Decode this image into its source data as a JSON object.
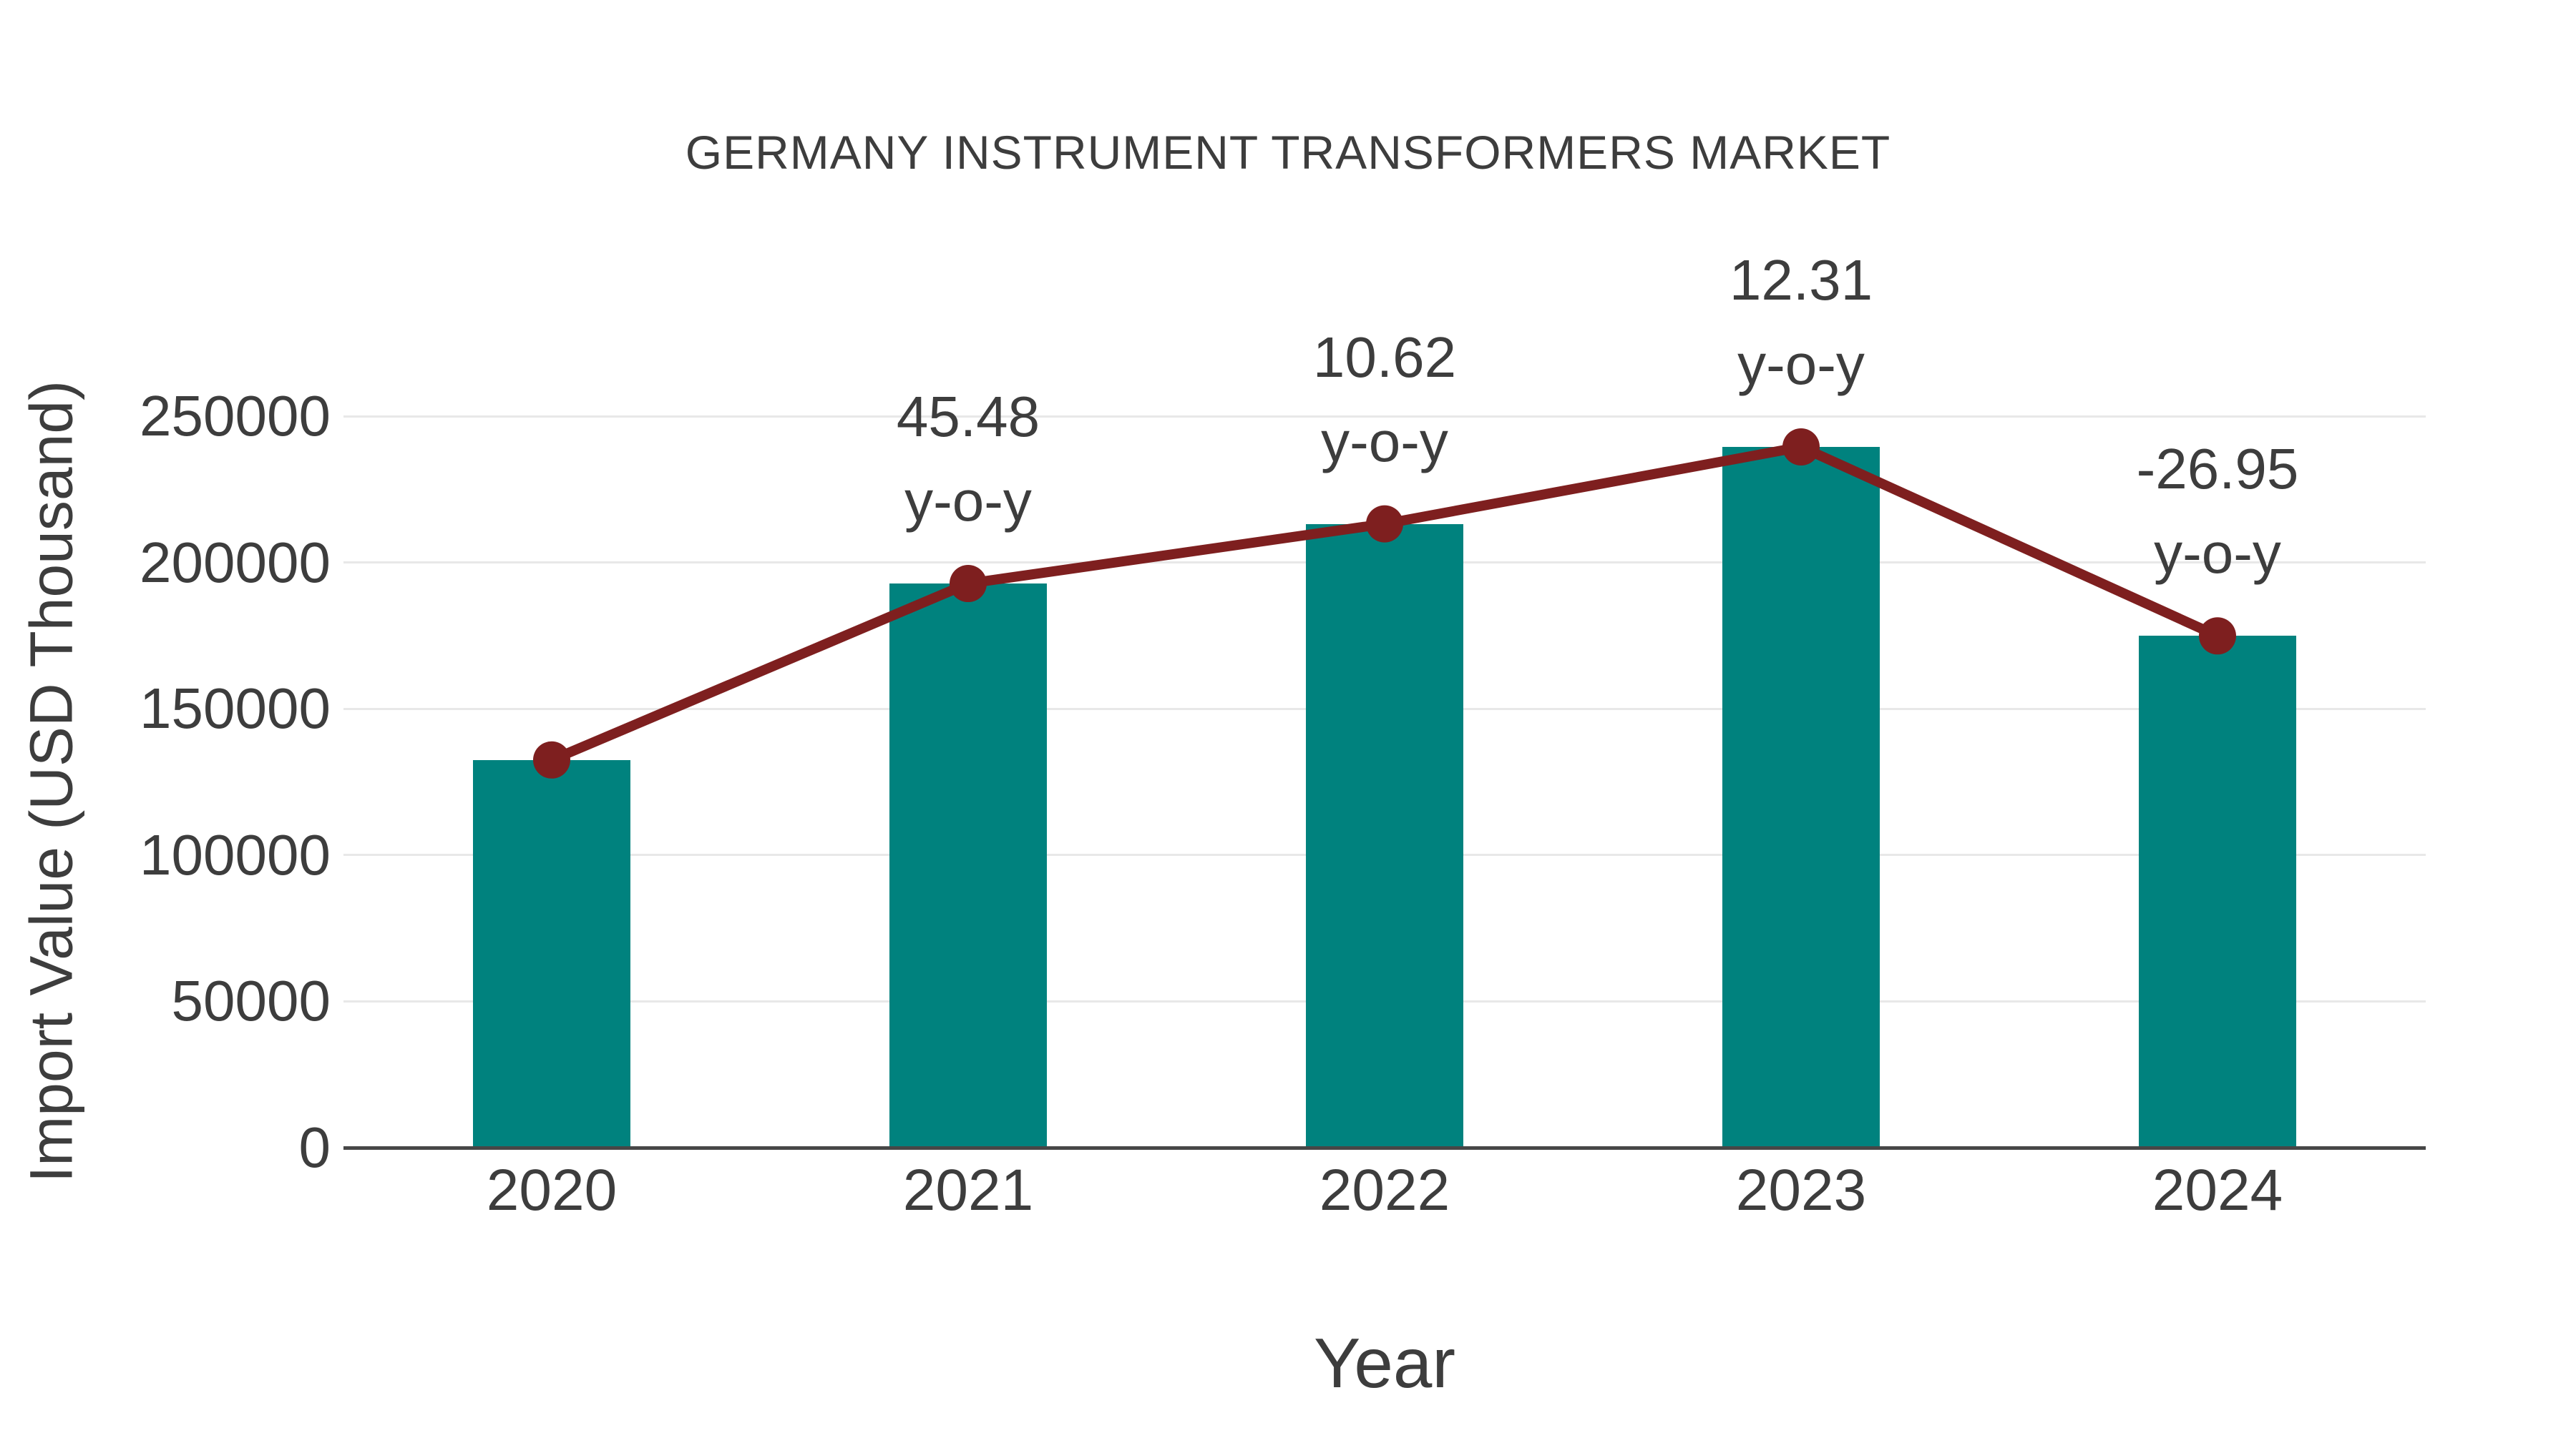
{
  "chart_data": {
    "type": "bar",
    "overlay": "line",
    "title": "GERMANY INSTRUMENT TRANSFORMERS MARKET",
    "xlabel": "Year",
    "ylabel": "Import Value (USD Thousand)",
    "categories": [
      "2020",
      "2021",
      "2022",
      "2023",
      "2024"
    ],
    "series": [
      {
        "name": "Import Value",
        "type": "bar",
        "values": [
          132500,
          192800,
          213200,
          239500,
          174900
        ]
      },
      {
        "name": "y-o-y trend",
        "type": "line",
        "values": [
          132500,
          192800,
          213200,
          239500,
          174900
        ]
      }
    ],
    "yoy_labels": [
      null,
      "45.48",
      "10.62",
      "12.31",
      "-26.95"
    ],
    "yoy_suffix": "y-o-y",
    "yticks": [
      0,
      50000,
      100000,
      150000,
      200000,
      250000
    ],
    "ylim": [
      0,
      280000
    ],
    "grid": "horizontal",
    "legend_position": "none",
    "colors": {
      "bar": "#00827e",
      "line": "#7e1f1f",
      "grid": "#e8e8e8",
      "axis": "#474747",
      "text": "#3d3d3d",
      "background": "#ffffff"
    }
  }
}
